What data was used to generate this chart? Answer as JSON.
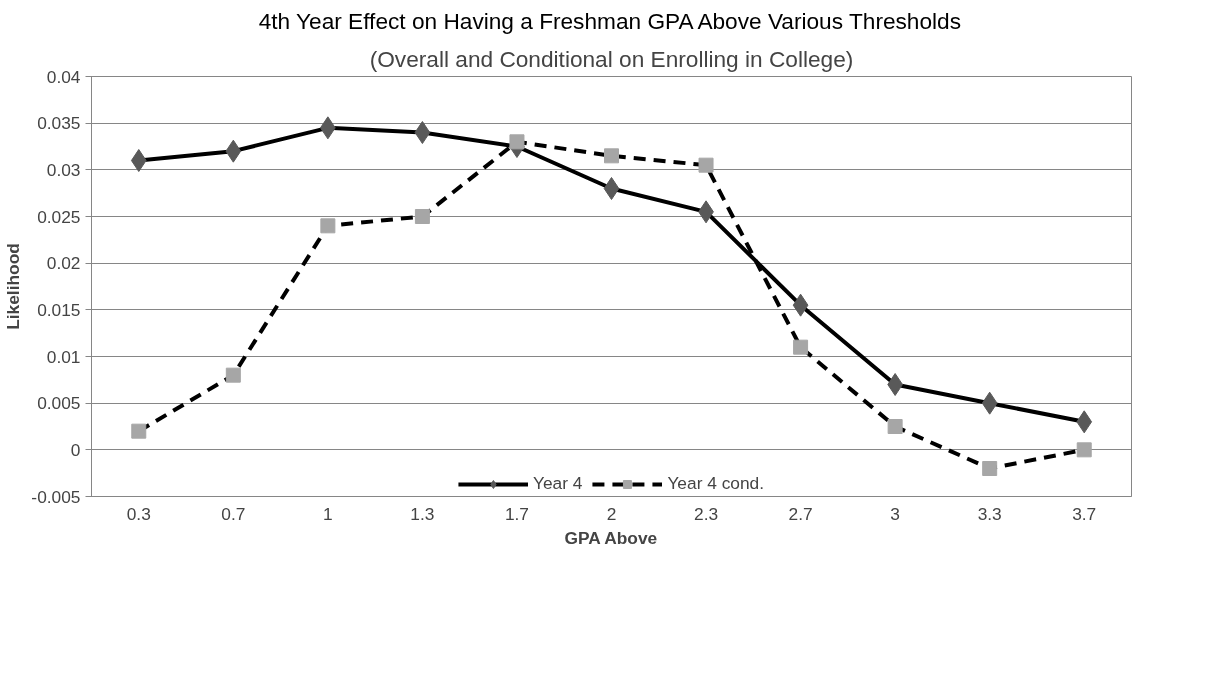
{
  "chart_data": {
    "type": "line",
    "title": "4th Year Effect on Having a Freshman GPA Above Various Thresholds",
    "subtitle": "(Overall and Conditional on Enrolling in College)",
    "xlabel": "GPA Above",
    "ylabel": "Likelihood",
    "categories": [
      "0.3",
      "0.7",
      "1",
      "1.3",
      "1.7",
      "2",
      "2.3",
      "2.7",
      "3",
      "3.3",
      "3.7"
    ],
    "series": [
      {
        "name": "Year 4",
        "color": "#595959",
        "marker": "diamond",
        "line_style": "solid",
        "values": [
          0.031,
          0.032,
          0.0345,
          0.034,
          0.0325,
          0.028,
          0.0255,
          0.0155,
          0.007,
          0.005,
          0.003
        ]
      },
      {
        "name": "Year 4 cond.",
        "color": "#a6a6a6",
        "marker": "square",
        "line_style": "dashed",
        "values": [
          0.002,
          0.008,
          0.024,
          0.025,
          0.033,
          0.0315,
          0.0305,
          0.011,
          0.0025,
          -0.002,
          0.0
        ]
      }
    ],
    "ylim": [
      -0.005,
      0.04
    ],
    "yticks": [
      -0.005,
      0,
      0.005,
      0.01,
      0.015,
      0.02,
      0.025,
      0.03,
      0.035,
      0.04
    ],
    "grid": "y",
    "legend": "bottom"
  }
}
